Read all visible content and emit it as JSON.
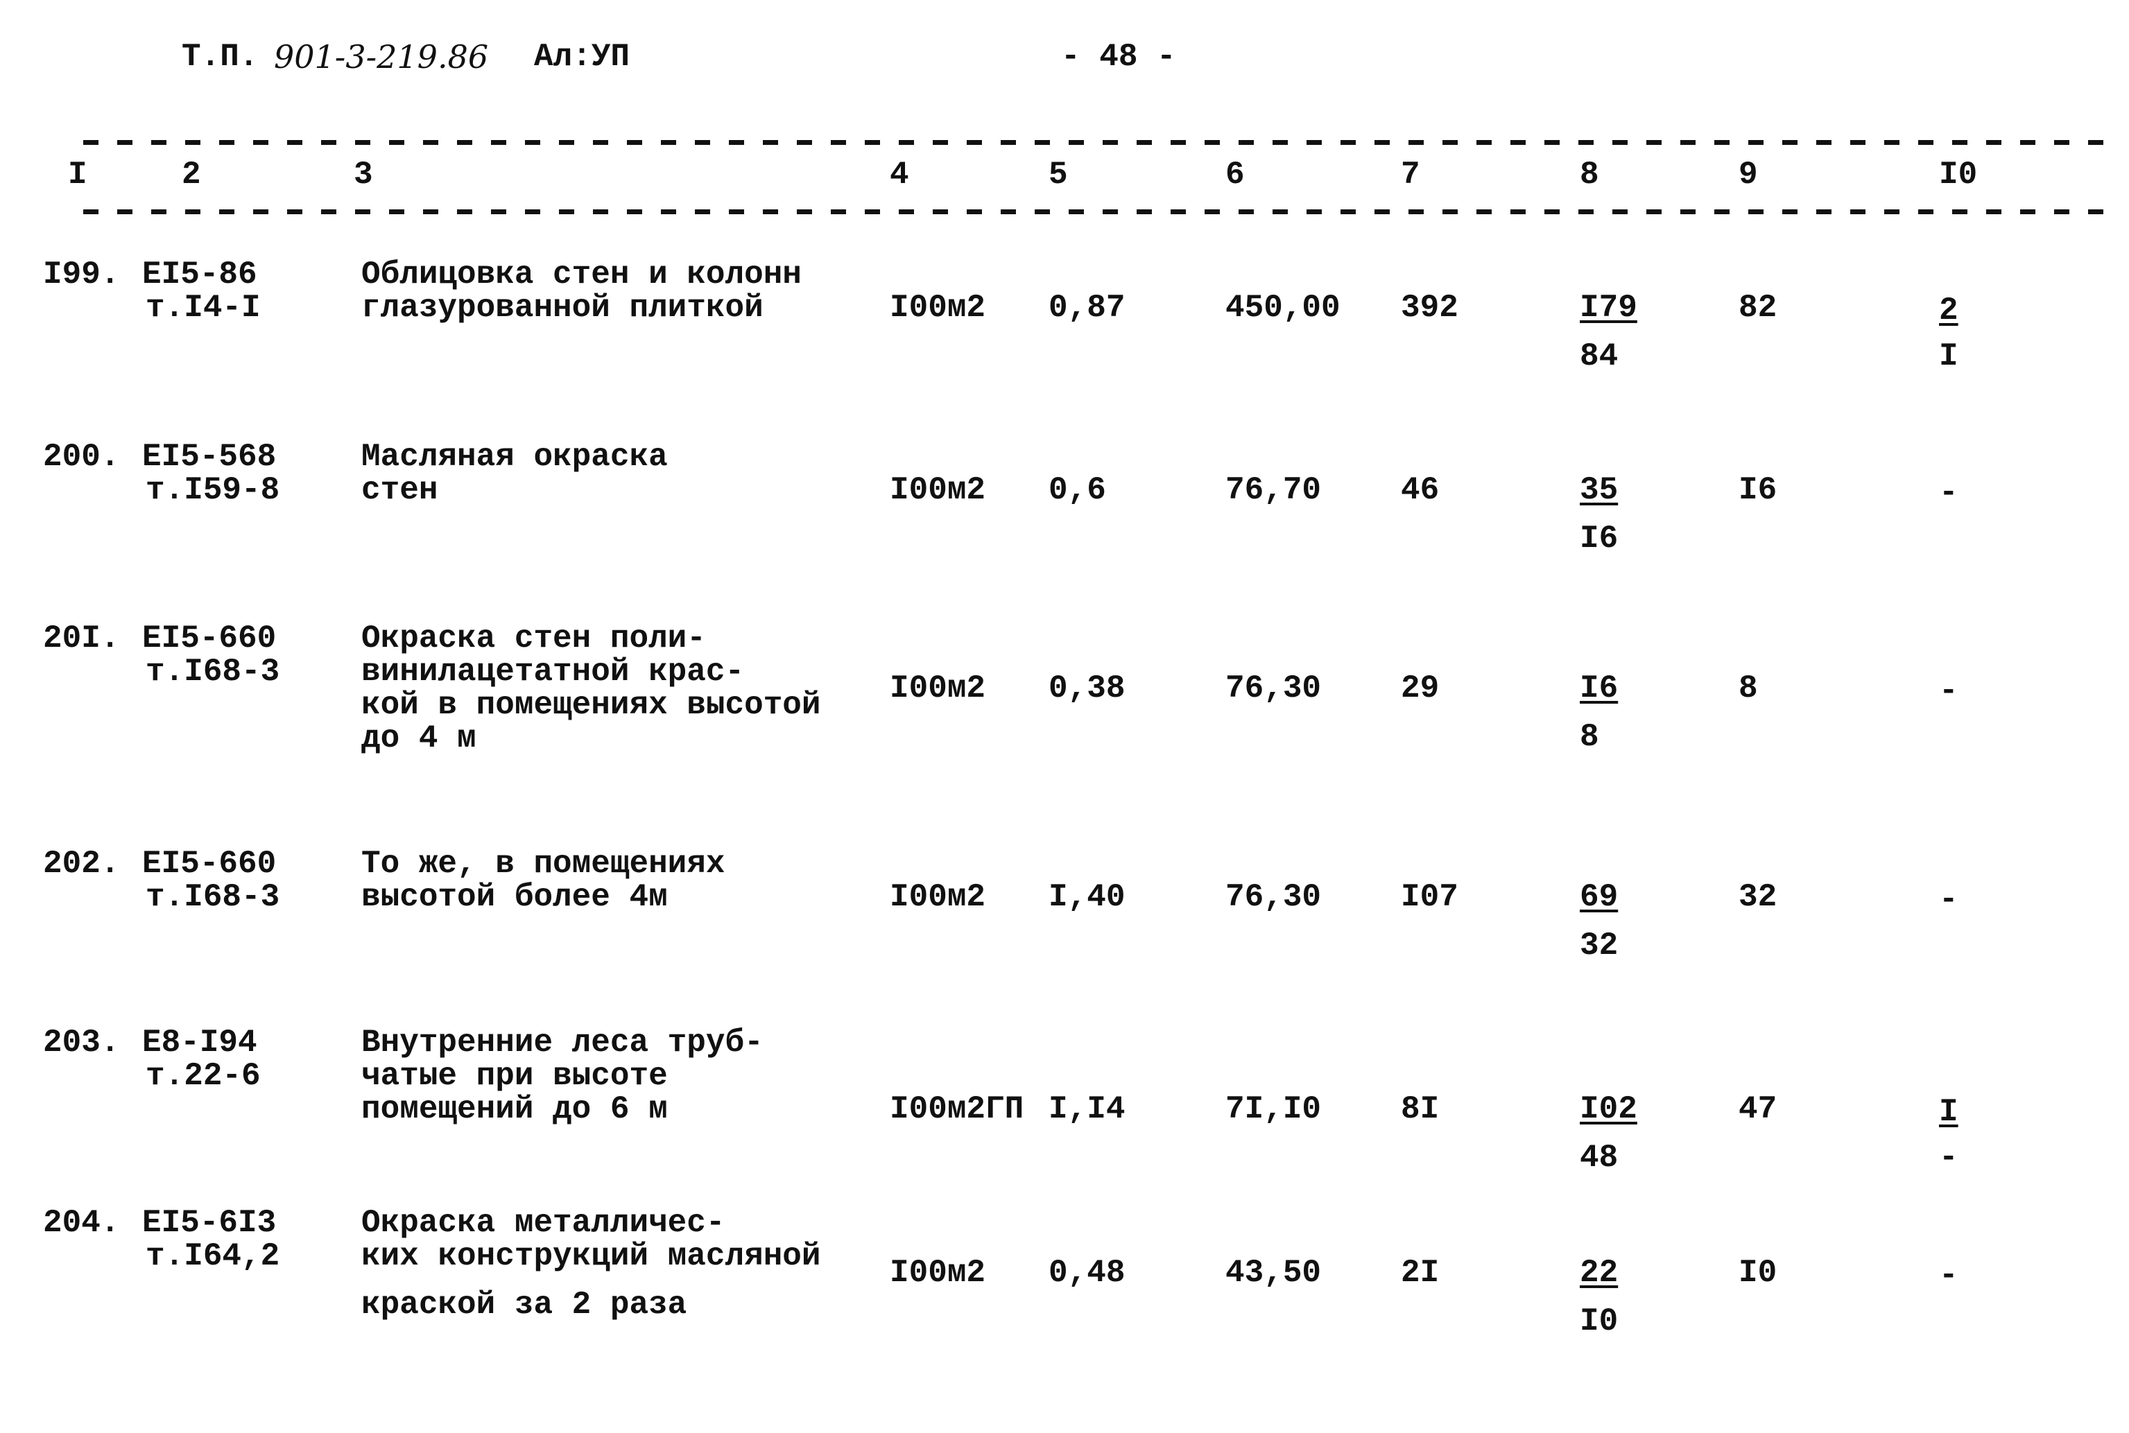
{
  "header": {
    "prefix": "Т.П.",
    "doc_number": "901-3-219.86",
    "album": "Ал:УП",
    "page": "- 48 -"
  },
  "columns": [
    "I",
    "2",
    "3",
    "4",
    "5",
    "6",
    "7",
    "8",
    "9",
    "I0"
  ],
  "rows": [
    {
      "num": "I99.",
      "code": [
        "EI5-86",
        "т.I4-I"
      ],
      "desc": [
        "Облицовка стен и колонн",
        "глазурованной плиткой"
      ],
      "unit": "I00м2",
      "qty": "0,87",
      "price": "450,00",
      "total": "392",
      "c8_top": "I79",
      "c8_bottom": "84",
      "c9": "82",
      "c10_top": "2",
      "c10_bottom": "I"
    },
    {
      "num": "200.",
      "code": [
        "EI5-568",
        "т.I59-8"
      ],
      "desc": [
        "Масляная окраска",
        "стен"
      ],
      "unit": "I00м2",
      "qty": "0,6",
      "price": "76,70",
      "total": "46",
      "c8_top": "35",
      "c8_bottom": "I6",
      "c9": "I6",
      "c10_top": "-",
      "c10_bottom": ""
    },
    {
      "num": "20I.",
      "code": [
        "EI5-660",
        "т.I68-3"
      ],
      "desc": [
        "Окраска стен поли-",
        "винилацетатной крас-",
        "кой в помещениях высотой",
        "до 4 м"
      ],
      "unit": "I00м2",
      "qty": "0,38",
      "price": "76,30",
      "total": "29",
      "c8_top": "I6",
      "c8_bottom": "8",
      "c9": "8",
      "c10_top": "-",
      "c10_bottom": ""
    },
    {
      "num": "202.",
      "code": [
        "EI5-660",
        "т.I68-3"
      ],
      "desc": [
        "То же, в помещениях",
        "высотой более 4м"
      ],
      "unit": "I00м2",
      "qty": "I,40",
      "price": "76,30",
      "total": "I07",
      "c8_top": "69",
      "c8_bottom": "32",
      "c9": "32",
      "c10_top": "-",
      "c10_bottom": ""
    },
    {
      "num": "203.",
      "code": [
        "E8-I94",
        "т.22-6"
      ],
      "desc": [
        "Внутренние леса труб-",
        "чатые при высоте",
        "помещений до 6 м"
      ],
      "unit": "I00м2ГП",
      "qty": "I,I4",
      "price": "7I,I0",
      "total": "8I",
      "c8_top": "I02",
      "c8_bottom": "48",
      "c9": "47",
      "c10_top": "I",
      "c10_bottom": "-"
    },
    {
      "num": "204.",
      "code": [
        "EI5-6I3",
        "т.I64,2"
      ],
      "desc": [
        "Окраска металличес-",
        "ких конструкций масляной",
        "краской за 2 раза"
      ],
      "unit": "I00м2",
      "qty": "0,48",
      "price": "43,50",
      "total": "2I",
      "c8_top": "22",
      "c8_bottom": "I0",
      "c9": "I0",
      "c10_top": "-",
      "c10_bottom": ""
    }
  ]
}
